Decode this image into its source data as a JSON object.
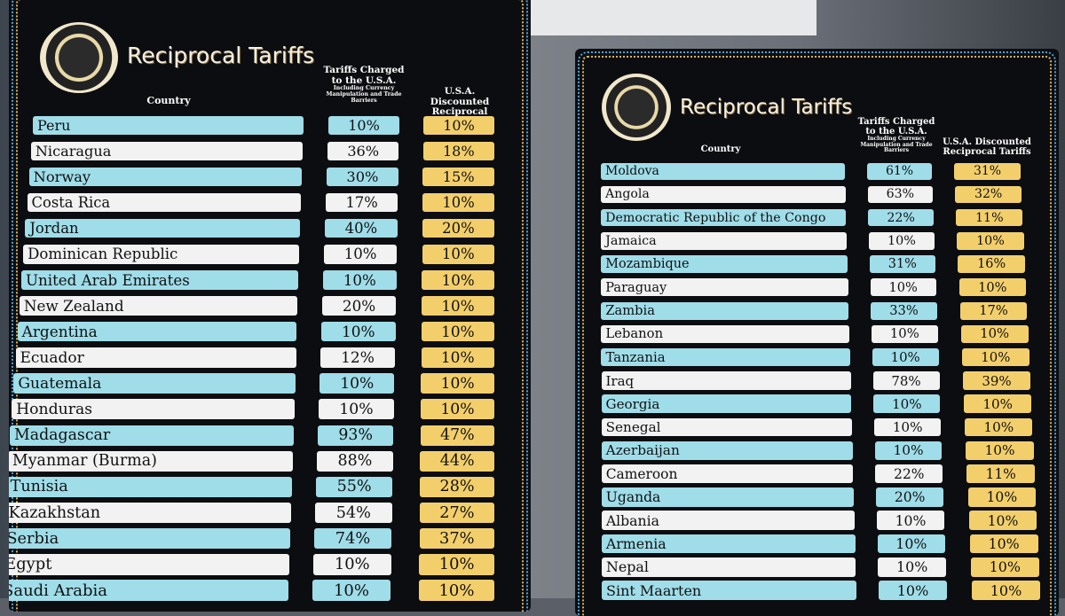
{
  "boards": [
    {
      "title": "Reciprocal Tariffs",
      "headers": {
        "country": "Country",
        "charged": "Tariffs Charged to the U.S.A.",
        "charged_note": "Including Currency Manipulation and Trade Barriers",
        "discounted": "U.S.A. Discounted Reciprocal Tariffs"
      },
      "rows": [
        [
          "Peru",
          "10%",
          "10%"
        ],
        [
          "Nicaragua",
          "36%",
          "18%"
        ],
        [
          "Norway",
          "30%",
          "15%"
        ],
        [
          "Costa Rica",
          "17%",
          "10%"
        ],
        [
          "Jordan",
          "40%",
          "20%"
        ],
        [
          "Dominican Republic",
          "10%",
          "10%"
        ],
        [
          "United Arab Emirates",
          "10%",
          "10%"
        ],
        [
          "New Zealand",
          "20%",
          "10%"
        ],
        [
          "Argentina",
          "10%",
          "10%"
        ],
        [
          "Ecuador",
          "12%",
          "10%"
        ],
        [
          "Guatemala",
          "10%",
          "10%"
        ],
        [
          "Honduras",
          "10%",
          "10%"
        ],
        [
          "Madagascar",
          "93%",
          "47%"
        ],
        [
          "Myanmar (Burma)",
          "88%",
          "44%"
        ],
        [
          "Tunisia",
          "55%",
          "28%"
        ],
        [
          "Kazakhstan",
          "54%",
          "27%"
        ],
        [
          "Serbia",
          "74%",
          "37%"
        ],
        [
          "Egypt",
          "10%",
          "10%"
        ],
        [
          "Saudi Arabia",
          "10%",
          "10%"
        ]
      ]
    },
    {
      "title": "Reciprocal Tariffs",
      "headers": {
        "country": "Country",
        "charged": "Tariffs Charged to the U.S.A.",
        "charged_note": "Including Currency Manipulation and Trade Barriers",
        "discounted": "U.S.A. Discounted Reciprocal Tariffs"
      },
      "rows": [
        [
          "Moldova",
          "61%",
          "31%"
        ],
        [
          "Angola",
          "63%",
          "32%"
        ],
        [
          "Democratic Republic of the Congo",
          "22%",
          "11%"
        ],
        [
          "Jamaica",
          "10%",
          "10%"
        ],
        [
          "Mozambique",
          "31%",
          "16%"
        ],
        [
          "Paraguay",
          "10%",
          "10%"
        ],
        [
          "Zambia",
          "33%",
          "17%"
        ],
        [
          "Lebanon",
          "10%",
          "10%"
        ],
        [
          "Tanzania",
          "10%",
          "10%"
        ],
        [
          "Iraq",
          "78%",
          "39%"
        ],
        [
          "Georgia",
          "10%",
          "10%"
        ],
        [
          "Senegal",
          "10%",
          "10%"
        ],
        [
          "Azerbaijan",
          "10%",
          "10%"
        ],
        [
          "Cameroon",
          "22%",
          "11%"
        ],
        [
          "Uganda",
          "20%",
          "10%"
        ],
        [
          "Albania",
          "10%",
          "10%"
        ],
        [
          "Armenia",
          "10%",
          "10%"
        ],
        [
          "Nepal",
          "10%",
          "10%"
        ],
        [
          "Sint Maarten",
          "10%",
          "10%"
        ]
      ]
    }
  ],
  "colors": {
    "blue_row": "#9fdde9",
    "white_row": "#f2f2f2",
    "discount": "#f3cf6c",
    "board": "#0c0d10"
  }
}
